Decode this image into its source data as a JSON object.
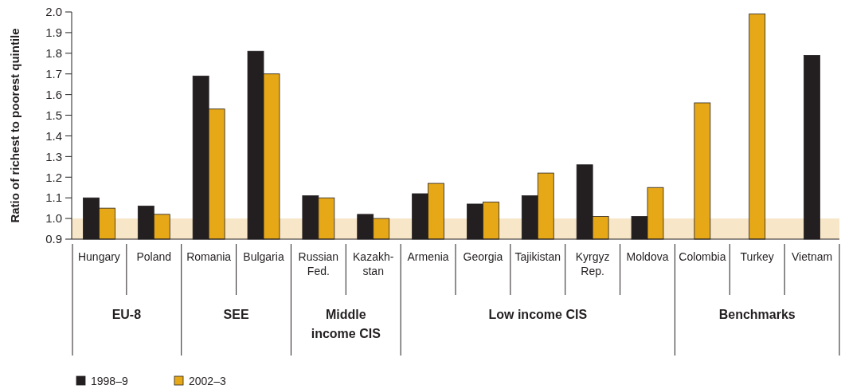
{
  "chart_data": {
    "type": "bar",
    "ylabel": "Ratio of richest to poorest quintile",
    "categories": [
      "Hungary",
      "Poland",
      "Romania",
      "Bulgaria",
      "Russian\nFed.",
      "Kazakh-\nstan",
      "Armenia",
      "Georgia",
      "Tajikistan",
      "Kyrgyz\nRep.",
      "Moldova",
      "Colombia",
      "Turkey",
      "Vietnam"
    ],
    "series": [
      {
        "name": "1998–9",
        "color": "#231f20",
        "values": [
          1.1,
          1.06,
          1.69,
          1.81,
          1.11,
          1.02,
          1.12,
          1.07,
          1.11,
          1.26,
          1.01,
          null,
          null,
          1.79
        ]
      },
      {
        "name": "2002–3",
        "color": "#e6a817",
        "values": [
          1.05,
          1.02,
          1.53,
          1.7,
          1.1,
          1.0,
          1.17,
          1.08,
          1.22,
          1.01,
          1.15,
          1.56,
          1.99,
          null
        ]
      }
    ],
    "ylim": [
      0.9,
      2.0
    ],
    "yticks": [
      {
        "value": 0.9,
        "label": "0.9"
      },
      {
        "value": 1.0,
        "label": "1.0"
      },
      {
        "value": 1.1,
        "label": "1.1"
      },
      {
        "value": 1.2,
        "label": "1.2"
      },
      {
        "value": 1.3,
        "label": "1.3"
      },
      {
        "value": 1.4,
        "label": "1.4"
      },
      {
        "value": 1.5,
        "label": "1.5"
      },
      {
        "value": 1.6,
        "label": "1.6"
      },
      {
        "value": 1.7,
        "label": "1.7"
      },
      {
        "value": 1.8,
        "label": "1.8"
      },
      {
        "value": 1.9,
        "label": "1.9"
      },
      {
        "value": 2.0,
        "label": "2.0"
      }
    ],
    "bands": [
      {
        "axis": "y",
        "from": 0.9,
        "to": 1.0,
        "color": "#f8e6c8"
      }
    ],
    "annotations": [
      "EU-8",
      "SEE",
      "Middle\nincome CIS",
      "Low income CIS",
      "Benchmarks"
    ],
    "legend": "bottom",
    "grid": false
  }
}
